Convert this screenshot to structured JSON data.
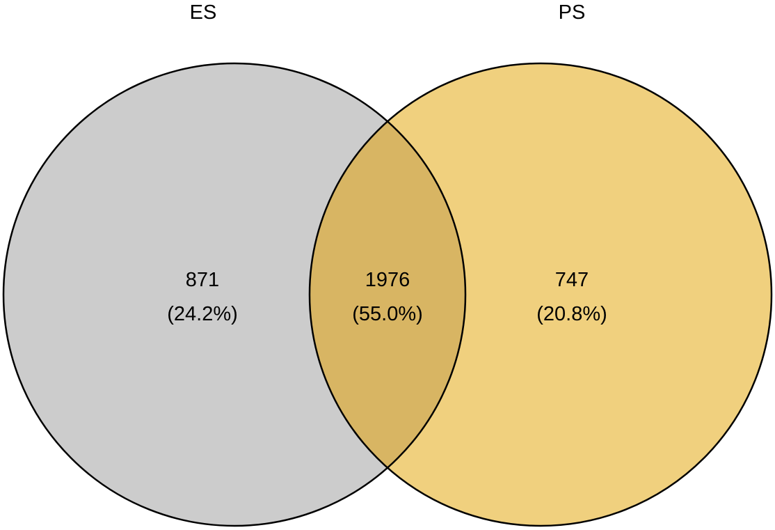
{
  "diagram": {
    "type": "venn",
    "sets": [
      {
        "id": "left",
        "label": "ES",
        "color": "#cccccc"
      },
      {
        "id": "right",
        "label": "PS",
        "color": "#f0d07e"
      }
    ],
    "overlap_color": "#d8b563",
    "outline_color": "#000000",
    "regions": [
      {
        "id": "left-only",
        "count": "871",
        "percent": "(24.2%)"
      },
      {
        "id": "intersection",
        "count": "1976",
        "percent": "(55.0%)"
      },
      {
        "id": "right-only",
        "count": "747",
        "percent": "(20.8%)"
      }
    ]
  }
}
